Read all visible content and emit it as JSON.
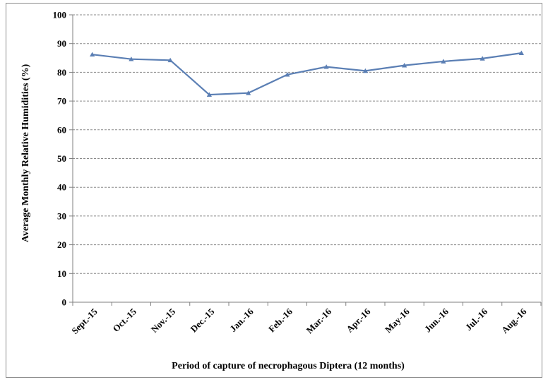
{
  "chart_data": {
    "type": "line",
    "categories": [
      "Sept.-15",
      "Oct.-15",
      "Nov.-15",
      "Dec.-15",
      "Jan.-16",
      "Feb.-16",
      "Mar.-16",
      "Apr.-16",
      "May-16",
      "Jun.-16",
      "Jul.-16",
      "Aug.-16"
    ],
    "series": [
      {
        "values": [
          86.2,
          84.6,
          84.2,
          72.2,
          72.8,
          79.2,
          81.9,
          80.5,
          82.4,
          83.8,
          84.8,
          86.7
        ]
      }
    ],
    "xlabel": "Period of capture of necrophagous Diptera (12 months)",
    "ylabel": "Average Monthly Relative Humidities  (%)",
    "ylim": [
      0,
      100
    ],
    "yticks": [
      0,
      10,
      20,
      30,
      40,
      50,
      60,
      70,
      80,
      90,
      100
    ],
    "grid": true,
    "line_color": "#5b7fb4"
  }
}
